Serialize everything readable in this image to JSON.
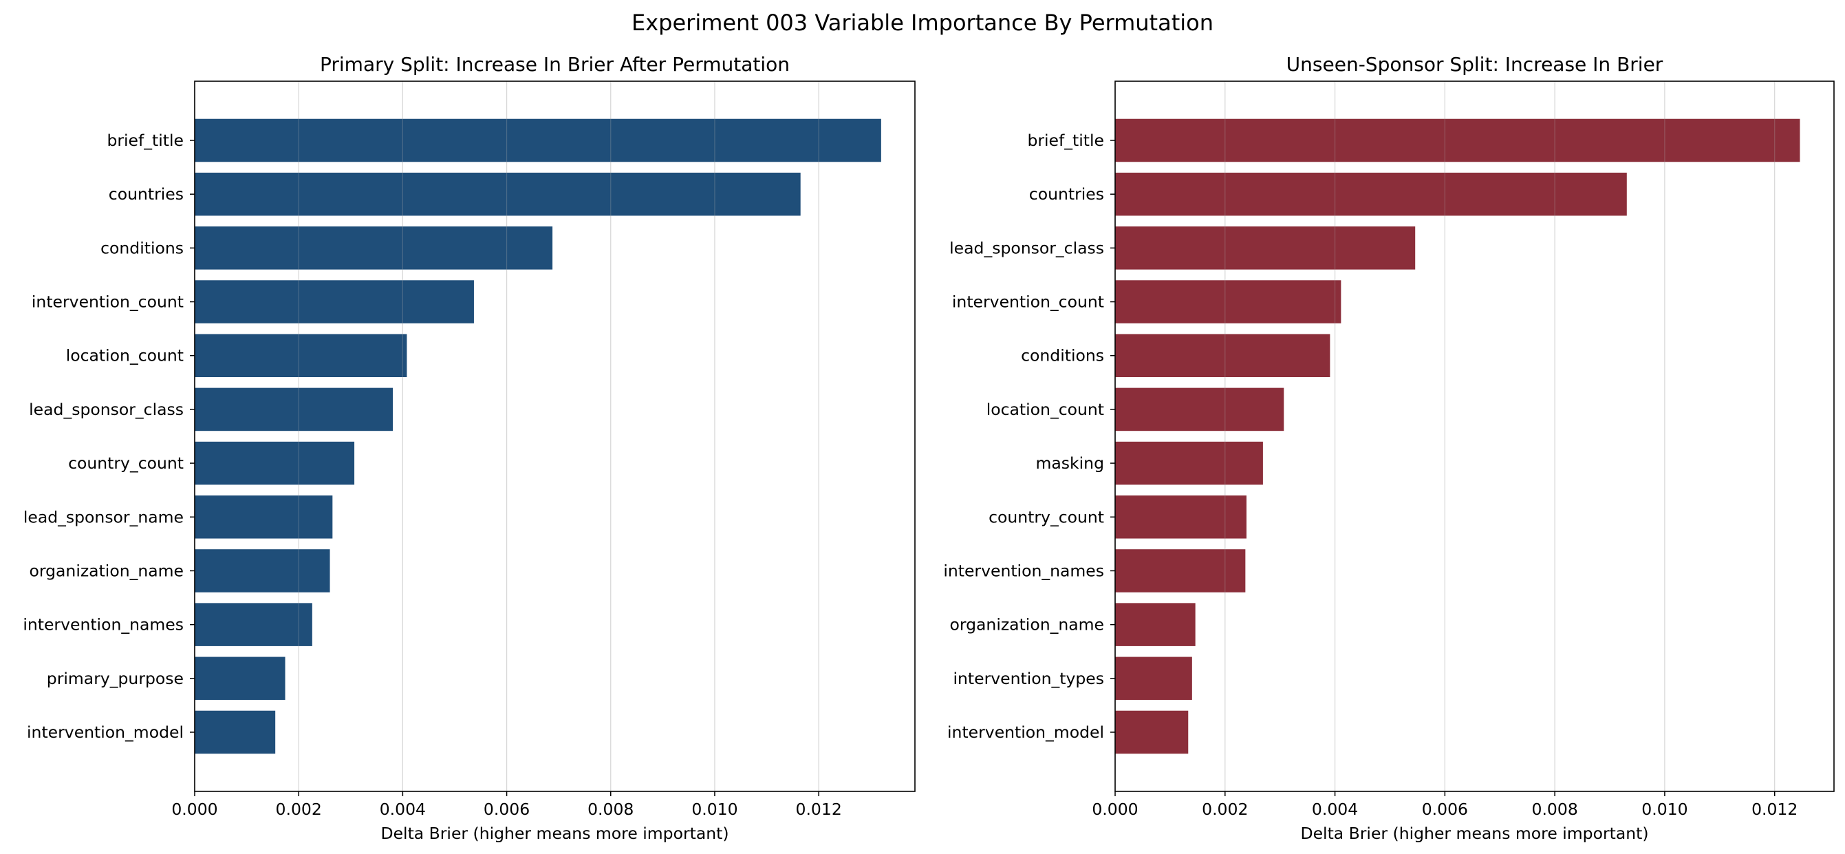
{
  "figure": {
    "title": "Experiment 003 Variable Importance By Permutation"
  },
  "chart_data": [
    {
      "type": "bar",
      "orientation": "horizontal",
      "title": "Primary Split: Increase In Brier After Permutation",
      "xlabel": "Delta Brier (higher means more important)",
      "ylabel": "",
      "xlim": [
        0,
        0.01385
      ],
      "xticks": [
        "0.000",
        "0.002",
        "0.004",
        "0.006",
        "0.008",
        "0.010",
        "0.012"
      ],
      "xtick_values": [
        0,
        0.002,
        0.004,
        0.006,
        0.008,
        0.01,
        0.012
      ],
      "grid": "vertical",
      "bar_color": "#1f4e79",
      "categories": [
        "brief_title",
        "countries",
        "conditions",
        "intervention_count",
        "location_count",
        "lead_sponsor_class",
        "country_count",
        "lead_sponsor_name",
        "organization_name",
        "intervention_names",
        "primary_purpose",
        "intervention_model"
      ],
      "values": [
        0.0132,
        0.01165,
        0.00688,
        0.00537,
        0.00408,
        0.00381,
        0.00307,
        0.00265,
        0.0026,
        0.00226,
        0.00174,
        0.00155
      ]
    },
    {
      "type": "bar",
      "orientation": "horizontal",
      "title": "Unseen-Sponsor Split: Increase In Brier",
      "xlabel": "Delta Brier (higher means more important)",
      "ylabel": "",
      "xlim": [
        0,
        0.01308
      ],
      "xticks": [
        "0.000",
        "0.002",
        "0.004",
        "0.006",
        "0.008",
        "0.010",
        "0.012"
      ],
      "xtick_values": [
        0,
        0.002,
        0.004,
        0.006,
        0.008,
        0.01,
        0.012
      ],
      "grid": "vertical",
      "bar_color": "#8b2e3a",
      "categories": [
        "brief_title",
        "countries",
        "lead_sponsor_class",
        "intervention_count",
        "conditions",
        "location_count",
        "masking",
        "country_count",
        "intervention_names",
        "organization_name",
        "intervention_types",
        "intervention_model"
      ],
      "values": [
        0.01246,
        0.00931,
        0.00546,
        0.00411,
        0.00391,
        0.00307,
        0.00269,
        0.00239,
        0.00237,
        0.00146,
        0.0014,
        0.00133
      ]
    }
  ]
}
